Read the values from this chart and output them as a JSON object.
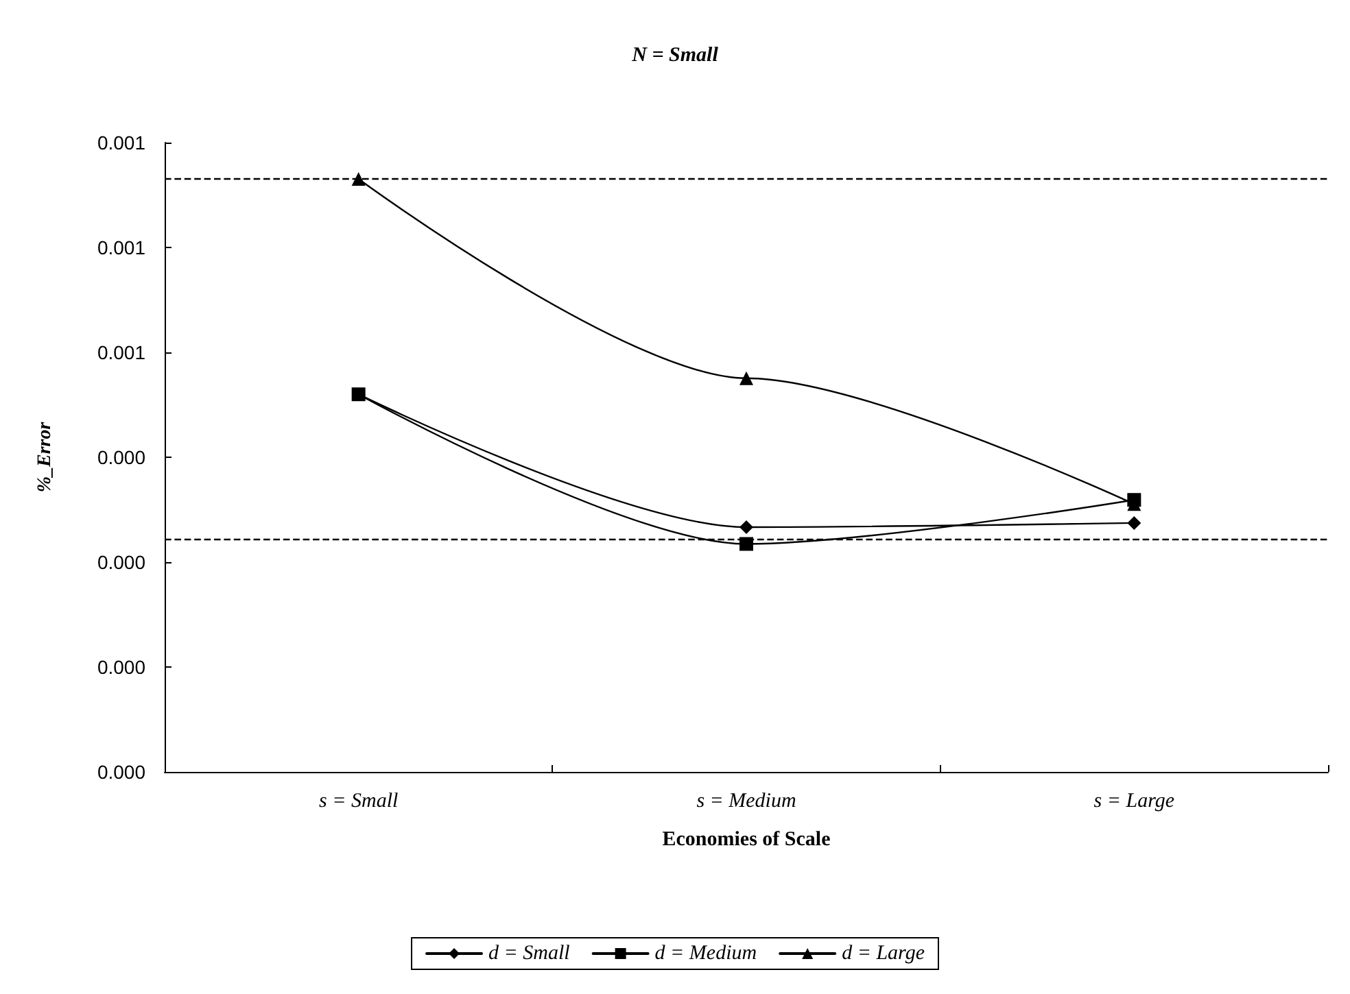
{
  "chart_data": {
    "type": "line",
    "title": "N = Small",
    "xlabel": "Economies of Scale",
    "ylabel": "%_Error",
    "categories": [
      "s = Small",
      "s = Medium",
      "s = Large"
    ],
    "series": [
      {
        "name": "d = Small",
        "color": "#000000",
        "marker": "diamond",
        "values": [
          0.00054,
          0.00035,
          0.000356
        ]
      },
      {
        "name": "d = Medium",
        "color": "#000000",
        "marker": "square",
        "values": [
          0.00054,
          0.000326,
          0.000389
        ]
      },
      {
        "name": "d = Large",
        "color": "#000000",
        "marker": "triangle",
        "values": [
          0.000848,
          0.000563,
          0.000383
        ]
      }
    ],
    "ylim": [
      0,
      0.0009
    ],
    "yticks": [
      {
        "value": 0,
        "label": "0.000"
      },
      {
        "value": 0.00015,
        "label": "0.000"
      },
      {
        "value": 0.0003,
        "label": "0.000"
      },
      {
        "value": 0.00045,
        "label": "0.000"
      },
      {
        "value": 0.0006,
        "label": "0.001"
      },
      {
        "value": 0.00075,
        "label": "0.001"
      },
      {
        "value": 0.0009,
        "label": "0.001"
      }
    ],
    "ref_lines": [
      {
        "axis": "y",
        "value": 0.000848,
        "color": "#000000",
        "line_style": "dashed"
      },
      {
        "axis": "y",
        "value": 0.000332,
        "color": "#000000",
        "line_style": "dashed"
      }
    ],
    "grid": false,
    "legend": "bottom",
    "line_style": "solid"
  }
}
